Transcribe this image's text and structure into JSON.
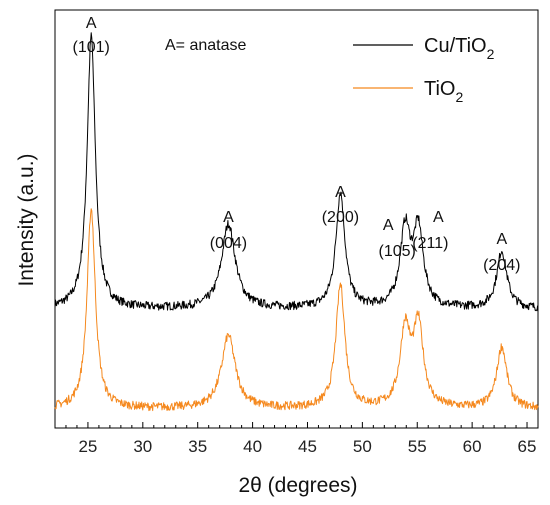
{
  "chart_data": {
    "type": "line",
    "xlabel": "2θ (degrees)",
    "ylabel": "Intensity (a.u.)",
    "xlim": [
      22,
      66
    ],
    "x_ticks": [
      25,
      30,
      35,
      40,
      45,
      50,
      55,
      60,
      65
    ],
    "y_ticks_shown": false,
    "grid": false,
    "annotation": "A= anatase",
    "legend": {
      "placement": "top-right",
      "entries": [
        {
          "base": "Cu/TiO",
          "sub": "2",
          "color": "#000000"
        },
        {
          "base": "TiO",
          "sub": "2",
          "color": "#f5891f"
        }
      ]
    },
    "peak_labels": [
      {
        "phase": "A",
        "hkl": "(101)",
        "x": 25.3
      },
      {
        "phase": "A",
        "hkl": "(004)",
        "x": 37.8
      },
      {
        "phase": "A",
        "hkl": "(200)",
        "x": 48.0
      },
      {
        "phase": "A",
        "hkl": "(105)",
        "x": 53.9
      },
      {
        "phase": "A",
        "hkl": "(211)",
        "x": 55.1
      },
      {
        "phase": "A",
        "hkl": "(204)",
        "x": 62.7
      }
    ],
    "series": [
      {
        "name": "Cu/TiO2",
        "color": "#000000",
        "baseline": 31,
        "peaks": [
          {
            "x": 25.3,
            "height": 71,
            "width": 0.45
          },
          {
            "x": 37.8,
            "height": 22,
            "width": 0.75
          },
          {
            "x": 48.0,
            "height": 30,
            "width": 0.5
          },
          {
            "x": 53.9,
            "height": 20,
            "width": 0.55
          },
          {
            "x": 55.1,
            "height": 20,
            "width": 0.55
          },
          {
            "x": 62.7,
            "height": 15,
            "width": 0.55
          }
        ]
      },
      {
        "name": "TiO2",
        "color": "#f5891f",
        "baseline": 5,
        "peaks": [
          {
            "x": 25.3,
            "height": 52,
            "width": 0.45
          },
          {
            "x": 37.8,
            "height": 19,
            "width": 0.75
          },
          {
            "x": 48.0,
            "height": 32,
            "width": 0.5
          },
          {
            "x": 53.9,
            "height": 20,
            "width": 0.55
          },
          {
            "x": 55.1,
            "height": 21,
            "width": 0.55
          },
          {
            "x": 62.7,
            "height": 16,
            "width": 0.55
          }
        ]
      }
    ]
  }
}
